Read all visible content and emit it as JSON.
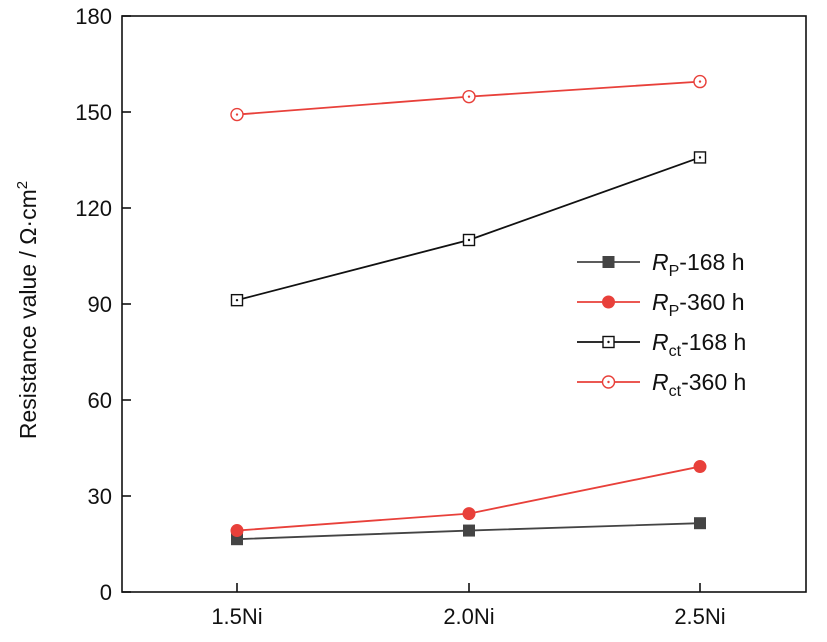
{
  "chart_data": {
    "type": "line",
    "categories": [
      "1.5Ni",
      "2.0Ni",
      "2.5Ni"
    ],
    "ylabel": "Resistance value / Ω·cm",
    "ylabel_sup": "2",
    "ylim": [
      0,
      180
    ],
    "yticks": [
      0,
      30,
      60,
      90,
      120,
      150,
      180
    ],
    "xlabel": "",
    "grid": false,
    "legend_position": "right-middle",
    "series": [
      {
        "name": "R_P-168 h",
        "name_italic": "R",
        "name_sub": "P",
        "name_tail": "-168 h",
        "values": [
          16.5,
          19.2,
          21.5
        ],
        "color": "#444444",
        "marker": "square-filled"
      },
      {
        "name": "R_P-360 h",
        "name_italic": "R",
        "name_sub": "P",
        "name_tail": "-360 h",
        "values": [
          19.2,
          24.5,
          39.2
        ],
        "color": "#e8403a",
        "marker": "circle-filled"
      },
      {
        "name": "R_ct-168 h",
        "name_italic": "R",
        "name_sub": "ct",
        "name_tail": "-168 h",
        "values": [
          91.2,
          110.0,
          135.8
        ],
        "color": "#111111",
        "marker": "square-open-dot"
      },
      {
        "name": "R_ct-360 h",
        "name_italic": "R",
        "name_sub": "ct",
        "name_tail": "-360 h",
        "values": [
          149.2,
          154.8,
          159.5
        ],
        "color": "#e8403a",
        "marker": "circle-open-dot"
      }
    ]
  }
}
